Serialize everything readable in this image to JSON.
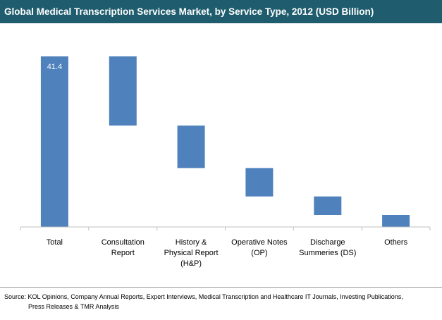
{
  "title": "Global Medical Transcription Services Market, by Service Type, 2012 (USD Billion)",
  "source": {
    "line1": "Source: KOL Opinions, Company Annual Reports, Expert Interviews, Medical Transcription and Healthcare IT Journals, Investing Publications,",
    "line2": "Press Releases & TMR Analysis"
  },
  "colors": {
    "title_bg": "#1f5d6e",
    "bar": "#4f81bd",
    "axis": "#bfbfbf"
  },
  "chart_data": {
    "type": "bar",
    "subtype": "waterfall",
    "title": "Global Medical Transcription Services Market, by Service Type, 2012 (USD Billion)",
    "categories": [
      [
        "Total"
      ],
      [
        "Consultation",
        "Report"
      ],
      [
        "History &",
        "Physical Report",
        "(H&P)"
      ],
      [
        "Operative Notes",
        "(OP)"
      ],
      [
        "Discharge",
        "Summeries (DS)"
      ],
      [
        "Others"
      ]
    ],
    "values": [
      41.4,
      16.8,
      10.3,
      6.9,
      4.5,
      2.9
    ],
    "data_labels": [
      "41.4",
      "",
      "",
      "",
      "",
      ""
    ],
    "xlabel": "",
    "ylabel": "",
    "ylim": [
      0,
      41.4
    ],
    "grid": false,
    "legend": "none"
  }
}
